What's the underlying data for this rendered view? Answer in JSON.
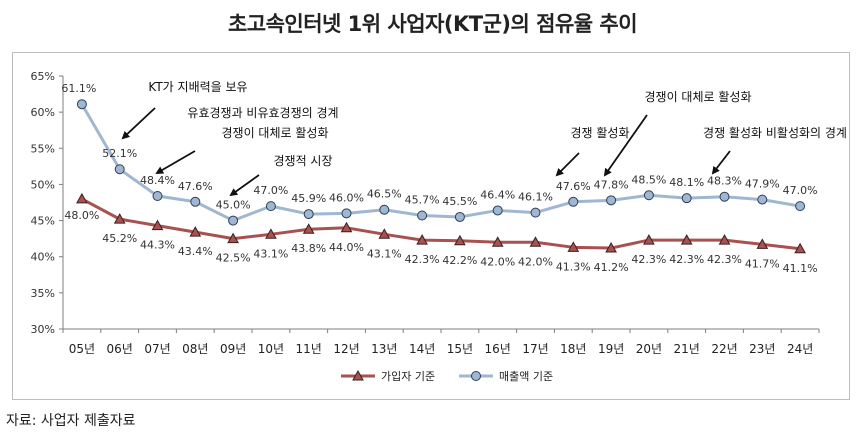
{
  "chart_data": {
    "type": "line",
    "title": "초고속인터넷 1위 사업자(KT군)의 점유율 추이",
    "categories": [
      "05년",
      "06년",
      "07년",
      "08년",
      "09년",
      "10년",
      "11년",
      "12년",
      "13년",
      "14년",
      "15년",
      "16년",
      "17년",
      "18년",
      "19년",
      "20년",
      "21년",
      "22년",
      "23년",
      "24년"
    ],
    "y_ticks": [
      "30%",
      "35%",
      "40%",
      "45%",
      "50%",
      "55%",
      "60%",
      "65%"
    ],
    "ylim": [
      30,
      65
    ],
    "grid": false,
    "legend_position": "bottom",
    "series": [
      {
        "name": "가입자 기준",
        "color": "#a85250",
        "marker": "triangle",
        "values": [
          48.0,
          45.2,
          44.3,
          43.4,
          42.5,
          43.1,
          43.8,
          44.0,
          43.1,
          42.3,
          42.2,
          42.0,
          42.0,
          41.3,
          41.2,
          42.3,
          42.3,
          42.3,
          41.7,
          41.1
        ],
        "labels": [
          "48.0%",
          "45.2%",
          "44.3%",
          "43.4%",
          "42.5%",
          "43.1%",
          "43.8%",
          "44.0%",
          "43.1%",
          "42.3%",
          "42.2%",
          "42.0%",
          "42.0%",
          "41.3%",
          "41.2%",
          "42.3%",
          "42.3%",
          "42.3%",
          "41.7%",
          "41.1%"
        ]
      },
      {
        "name": "매출액 기준",
        "color": "#9fb7d2",
        "marker": "circle",
        "values": [
          61.1,
          52.1,
          48.4,
          47.6,
          45.0,
          47.0,
          45.9,
          46.0,
          46.5,
          45.7,
          45.5,
          46.4,
          46.1,
          47.6,
          47.8,
          48.5,
          48.1,
          48.3,
          47.9,
          47.0
        ],
        "labels": [
          "61.1%",
          "52.1%",
          "48.4%",
          "47.6%",
          "45.0%",
          "47.0%",
          "45.9%",
          "46.0%",
          "46.5%",
          "45.7%",
          "45.5%",
          "46.4%",
          "46.1%",
          "47.6%",
          "47.8%",
          "48.5%",
          "48.1%",
          "48.3%",
          "47.9%",
          "47.0%"
        ]
      }
    ],
    "annotations": [
      {
        "text": "KT가 지배력을 보유",
        "target_index": 1
      },
      {
        "text": "유효경쟁과 비유효경쟁의 경계",
        "target_index": null
      },
      {
        "text": "경쟁이 대체로 활성화",
        "target_index": 2
      },
      {
        "text": "경쟁적 시장",
        "target_index": 4
      },
      {
        "text": "경쟁 활성화",
        "target_index": 13
      },
      {
        "text": "경쟁이 대체로 활성화",
        "target_index": 14
      },
      {
        "text": "경쟁 활성화 비활성화의 경계",
        "target_index": 17
      }
    ]
  },
  "source_note": "자료: 사업자 제출자료"
}
